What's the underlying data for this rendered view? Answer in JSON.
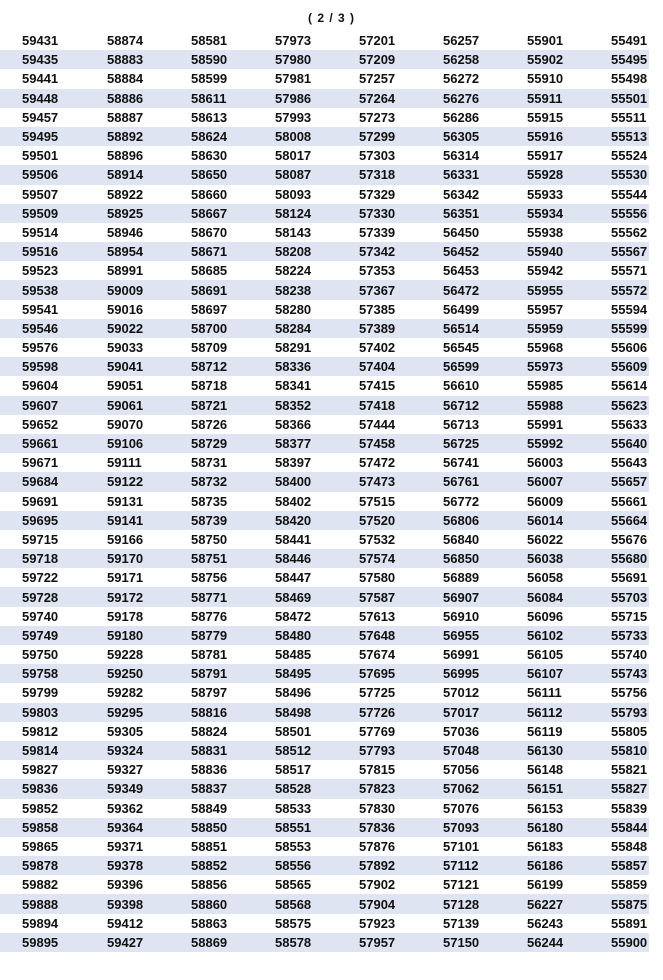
{
  "page_indicator": "( 2 / 3 )",
  "rows": [
    [
      "59431",
      "58874",
      "58581",
      "57973",
      "57201",
      "56257",
      "55901",
      "55491"
    ],
    [
      "59435",
      "58883",
      "58590",
      "57980",
      "57209",
      "56258",
      "55902",
      "55495"
    ],
    [
      "59441",
      "58884",
      "58599",
      "57981",
      "57257",
      "56272",
      "55910",
      "55498"
    ],
    [
      "59448",
      "58886",
      "58611",
      "57986",
      "57264",
      "56276",
      "55911",
      "55501"
    ],
    [
      "59457",
      "58887",
      "58613",
      "57993",
      "57273",
      "56286",
      "55915",
      "55511"
    ],
    [
      "59495",
      "58892",
      "58624",
      "58008",
      "57299",
      "56305",
      "55916",
      "55513"
    ],
    [
      "59501",
      "58896",
      "58630",
      "58017",
      "57303",
      "56314",
      "55917",
      "55524"
    ],
    [
      "59506",
      "58914",
      "58650",
      "58087",
      "57318",
      "56331",
      "55928",
      "55530"
    ],
    [
      "59507",
      "58922",
      "58660",
      "58093",
      "57329",
      "56342",
      "55933",
      "55544"
    ],
    [
      "59509",
      "58925",
      "58667",
      "58124",
      "57330",
      "56351",
      "55934",
      "55556"
    ],
    [
      "59514",
      "58946",
      "58670",
      "58143",
      "57339",
      "56450",
      "55938",
      "55562"
    ],
    [
      "59516",
      "58954",
      "58671",
      "58208",
      "57342",
      "56452",
      "55940",
      "55567"
    ],
    [
      "59523",
      "58991",
      "58685",
      "58224",
      "57353",
      "56453",
      "55942",
      "55571"
    ],
    [
      "59538",
      "59009",
      "58691",
      "58238",
      "57367",
      "56472",
      "55955",
      "55572"
    ],
    [
      "59541",
      "59016",
      "58697",
      "58280",
      "57385",
      "56499",
      "55957",
      "55594"
    ],
    [
      "59546",
      "59022",
      "58700",
      "58284",
      "57389",
      "56514",
      "55959",
      "55599"
    ],
    [
      "59576",
      "59033",
      "58709",
      "58291",
      "57402",
      "56545",
      "55968",
      "55606"
    ],
    [
      "59598",
      "59041",
      "58712",
      "58336",
      "57404",
      "56599",
      "55973",
      "55609"
    ],
    [
      "59604",
      "59051",
      "58718",
      "58341",
      "57415",
      "56610",
      "55985",
      "55614"
    ],
    [
      "59607",
      "59061",
      "58721",
      "58352",
      "57418",
      "56712",
      "55988",
      "55623"
    ],
    [
      "59652",
      "59070",
      "58726",
      "58366",
      "57444",
      "56713",
      "55991",
      "55633"
    ],
    [
      "59661",
      "59106",
      "58729",
      "58377",
      "57458",
      "56725",
      "55992",
      "55640"
    ],
    [
      "59671",
      "59111",
      "58731",
      "58397",
      "57472",
      "56741",
      "56003",
      "55643"
    ],
    [
      "59684",
      "59122",
      "58732",
      "58400",
      "57473",
      "56761",
      "56007",
      "55657"
    ],
    [
      "59691",
      "59131",
      "58735",
      "58402",
      "57515",
      "56772",
      "56009",
      "55661"
    ],
    [
      "59695",
      "59141",
      "58739",
      "58420",
      "57520",
      "56806",
      "56014",
      "55664"
    ],
    [
      "59715",
      "59166",
      "58750",
      "58441",
      "57532",
      "56840",
      "56022",
      "55676"
    ],
    [
      "59718",
      "59170",
      "58751",
      "58446",
      "57574",
      "56850",
      "56038",
      "55680"
    ],
    [
      "59722",
      "59171",
      "58756",
      "58447",
      "57580",
      "56889",
      "56058",
      "55691"
    ],
    [
      "59728",
      "59172",
      "58771",
      "58469",
      "57587",
      "56907",
      "56084",
      "55703"
    ],
    [
      "59740",
      "59178",
      "58776",
      "58472",
      "57613",
      "56910",
      "56096",
      "55715"
    ],
    [
      "59749",
      "59180",
      "58779",
      "58480",
      "57648",
      "56955",
      "56102",
      "55733"
    ],
    [
      "59750",
      "59228",
      "58781",
      "58485",
      "57674",
      "56991",
      "56105",
      "55740"
    ],
    [
      "59758",
      "59250",
      "58791",
      "58495",
      "57695",
      "56995",
      "56107",
      "55743"
    ],
    [
      "59799",
      "59282",
      "58797",
      "58496",
      "57725",
      "57012",
      "56111",
      "55756"
    ],
    [
      "59803",
      "59295",
      "58816",
      "58498",
      "57726",
      "57017",
      "56112",
      "55793"
    ],
    [
      "59812",
      "59305",
      "58824",
      "58501",
      "57769",
      "57036",
      "56119",
      "55805"
    ],
    [
      "59814",
      "59324",
      "58831",
      "58512",
      "57793",
      "57048",
      "56130",
      "55810"
    ],
    [
      "59827",
      "59327",
      "58836",
      "58517",
      "57815",
      "57056",
      "56148",
      "55821"
    ],
    [
      "59836",
      "59349",
      "58837",
      "58528",
      "57823",
      "57062",
      "56151",
      "55827"
    ],
    [
      "59852",
      "59362",
      "58849",
      "58533",
      "57830",
      "57076",
      "56153",
      "55839"
    ],
    [
      "59858",
      "59364",
      "58850",
      "58551",
      "57836",
      "57093",
      "56180",
      "55844"
    ],
    [
      "59865",
      "59371",
      "58851",
      "58553",
      "57876",
      "57101",
      "56183",
      "55848"
    ],
    [
      "59878",
      "59378",
      "58852",
      "58556",
      "57892",
      "57112",
      "56186",
      "55857"
    ],
    [
      "59882",
      "59396",
      "58856",
      "58565",
      "57902",
      "57121",
      "56199",
      "55859"
    ],
    [
      "59888",
      "59398",
      "58860",
      "58568",
      "57904",
      "57128",
      "56227",
      "55875"
    ],
    [
      "59894",
      "59412",
      "58863",
      "58575",
      "57923",
      "57139",
      "56243",
      "55891"
    ],
    [
      "59895",
      "59427",
      "58869",
      "58578",
      "57957",
      "57150",
      "56244",
      "55900"
    ]
  ],
  "colors": {
    "stripe": "#dfe4f3",
    "text": "#111111"
  }
}
